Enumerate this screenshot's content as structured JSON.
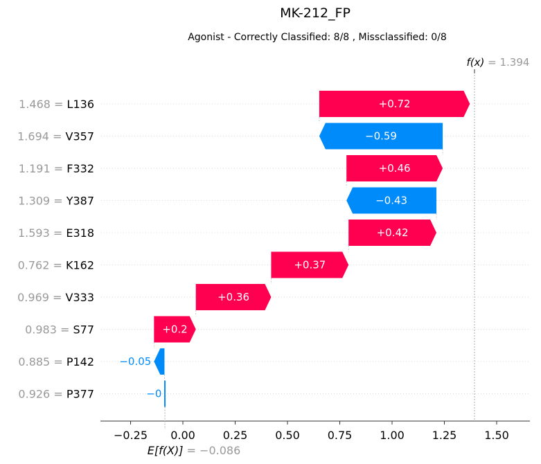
{
  "chart_data": {
    "type": "waterfall",
    "title": "MK-212_FP",
    "subtitle": "Agonist - Correctly Classified: 8/8 , Missclassified: 0/8",
    "fx_label": "f(x)",
    "fx_value": "1.394",
    "fx": 1.394,
    "ex_label": "E[f(X)]",
    "ex_value": "−0.086",
    "ex": -0.086,
    "xlim": [
      -0.4,
      1.65
    ],
    "xticks": [
      -0.25,
      0.0,
      0.25,
      0.5,
      0.75,
      1.0,
      1.25,
      1.5
    ],
    "xtick_labels": [
      "−0.25",
      "0.00",
      "0.25",
      "0.50",
      "0.75",
      "1.00",
      "1.25",
      "1.50"
    ],
    "features": [
      {
        "value": "1.468",
        "name": "L136",
        "shap": 0.72,
        "label": "+0.72"
      },
      {
        "value": "1.694",
        "name": "V357",
        "shap": -0.59,
        "label": "−0.59"
      },
      {
        "value": "1.191",
        "name": "F332",
        "shap": 0.46,
        "label": "+0.46"
      },
      {
        "value": "1.309",
        "name": "Y387",
        "shap": -0.43,
        "label": "−0.43"
      },
      {
        "value": "1.593",
        "name": "E318",
        "shap": 0.42,
        "label": "+0.42"
      },
      {
        "value": "0.762",
        "name": "K162",
        "shap": 0.37,
        "label": "+0.37"
      },
      {
        "value": "0.969",
        "name": "V333",
        "shap": 0.36,
        "label": "+0.36"
      },
      {
        "value": "0.983",
        "name": "S77",
        "shap": 0.2,
        "label": "+0.2"
      },
      {
        "value": "0.885",
        "name": "P142",
        "shap": -0.05,
        "label": "−0.05"
      },
      {
        "value": "0.926",
        "name": "P377",
        "shap": -0.002,
        "label": "−0"
      }
    ],
    "colors": {
      "positive": "#ff0051",
      "negative": "#008bfb",
      "muted": "#999999"
    }
  }
}
